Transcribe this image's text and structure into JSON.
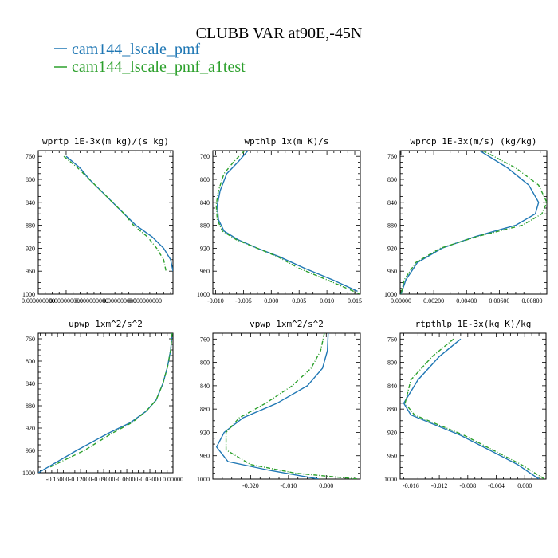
{
  "figure": {
    "title": "CLUBB VAR at90E,-45N",
    "legend": [
      {
        "label": "cam144_lscale_pmf",
        "color": "#1f77b4",
        "dash": "solid"
      },
      {
        "label": "cam144_lscale_pmf_a1test",
        "color": "#2ca02c",
        "dash": "dashdot"
      }
    ]
  },
  "chart_data": [
    {
      "type": "line",
      "title": "wprtp  1E-3x(m kg)/(s kg)",
      "xlim": [
        0.0,
        5.8e-06
      ],
      "ylim": [
        1000,
        750
      ],
      "xticks": [
        {
          "v": 0.0,
          "label": "0.000000000"
        },
        {
          "v": 1.2e-06,
          "label": "0.000000000"
        },
        {
          "v": 2.3e-06,
          "label": "0.000000000"
        },
        {
          "v": 3.5e-06,
          "label": "0.000000000"
        },
        {
          "v": 4.6e-06,
          "label": "0.000000000"
        }
      ],
      "yticks": [
        760,
        800,
        840,
        880,
        920,
        960,
        1000
      ],
      "series": [
        {
          "name": "cam144_lscale_pmf",
          "x": [
            1.2e-06,
            1.8e-06,
            2.2e-06,
            2.7e-06,
            3.2e-06,
            3.7e-06,
            4.2e-06,
            4.9e-06,
            5.4e-06,
            5.7e-06,
            5.8e-06
          ],
          "y": [
            760,
            780,
            800,
            820,
            840,
            860,
            880,
            900,
            920,
            940,
            960
          ]
        },
        {
          "name": "cam144_lscale_pmf_a1test",
          "x": [
            1.1e-06,
            1.7e-06,
            2.2e-06,
            2.7e-06,
            3.2e-06,
            3.7e-06,
            4.1e-06,
            4.7e-06,
            5.1e-06,
            5.4e-06,
            5.5e-06
          ],
          "y": [
            760,
            780,
            800,
            820,
            840,
            860,
            880,
            900,
            920,
            940,
            960
          ]
        }
      ]
    },
    {
      "type": "line",
      "title": "wpthlp  1x(m K)/s",
      "xlim": [
        -0.0105,
        0.016
      ],
      "ylim": [
        1000,
        750
      ],
      "xticks": [
        {
          "v": -0.01,
          "label": "-0.010"
        },
        {
          "v": -0.005,
          "label": "-0.005"
        },
        {
          "v": 0.0,
          "label": "0.000"
        },
        {
          "v": 0.005,
          "label": "0.005"
        },
        {
          "v": 0.01,
          "label": "0.010"
        },
        {
          "v": 0.015,
          "label": "0.015"
        }
      ],
      "yticks": [
        760,
        800,
        840,
        880,
        920,
        960,
        1000
      ],
      "series": [
        {
          "name": "cam144_lscale_pmf",
          "x": [
            -0.0042,
            -0.006,
            -0.008,
            -0.0092,
            -0.0097,
            -0.0095,
            -0.0085,
            -0.006,
            -0.0025,
            0.0015,
            0.006,
            0.011,
            0.0155
          ],
          "y": [
            750,
            770,
            790,
            820,
            845,
            870,
            890,
            905,
            920,
            935,
            955,
            975,
            995
          ]
        },
        {
          "name": "cam144_lscale_pmf_a1test",
          "x": [
            -0.0048,
            -0.0068,
            -0.0085,
            -0.0095,
            -0.0099,
            -0.0097,
            -0.0088,
            -0.0063,
            -0.0025,
            0.0012,
            0.005,
            0.01,
            0.016
          ],
          "y": [
            750,
            770,
            790,
            820,
            845,
            870,
            890,
            905,
            920,
            935,
            955,
            975,
            1000
          ]
        }
      ]
    },
    {
      "type": "line",
      "title": "wprcp  1E-3x(m/s) (kg/kg)",
      "xlim": [
        -5e-05,
        0.0089
      ],
      "ylim": [
        1000,
        750
      ],
      "xticks": [
        {
          "v": 0.0,
          "label": "0.00000"
        },
        {
          "v": 0.002,
          "label": "0.00200"
        },
        {
          "v": 0.004,
          "label": "0.00400"
        },
        {
          "v": 0.006,
          "label": "0.00600"
        },
        {
          "v": 0.008,
          "label": "0.00800"
        }
      ],
      "yticks": [
        760,
        800,
        840,
        880,
        920,
        960,
        1000
      ],
      "series": [
        {
          "name": "cam144_lscale_pmf",
          "x": [
            0.0048,
            0.0065,
            0.0078,
            0.0084,
            0.0082,
            0.007,
            0.0045,
            0.0025,
            0.001,
            0.0003,
            0.0
          ],
          "y": [
            750,
            780,
            810,
            840,
            860,
            880,
            900,
            920,
            945,
            975,
            1000
          ]
        },
        {
          "name": "cam144_lscale_pmf_a1test",
          "x": [
            0.005,
            0.007,
            0.0084,
            0.0089,
            0.0086,
            0.0074,
            0.0046,
            0.0024,
            0.0009,
            0.0002,
            0.0
          ],
          "y": [
            750,
            780,
            810,
            840,
            860,
            880,
            900,
            920,
            945,
            975,
            1000
          ]
        }
      ]
    },
    {
      "type": "line",
      "title": "upwp  1xm^2/s^2",
      "xlim": [
        -0.175,
        0.0
      ],
      "ylim": [
        1000,
        750
      ],
      "xticks": [
        {
          "v": -0.15,
          "label": "-0.15000"
        },
        {
          "v": -0.12,
          "label": "-0.12000"
        },
        {
          "v": -0.09,
          "label": "-0.09000"
        },
        {
          "v": -0.06,
          "label": "-0.06000"
        },
        {
          "v": -0.03,
          "label": "-0.03000"
        },
        {
          "v": 0.0,
          "label": "0.00000"
        }
      ],
      "yticks": [
        760,
        800,
        840,
        880,
        920,
        960,
        1000
      ],
      "series": [
        {
          "name": "cam144_lscale_pmf",
          "x": [
            -0.001,
            -0.003,
            -0.007,
            -0.013,
            -0.022,
            -0.035,
            -0.055,
            -0.085,
            -0.125,
            -0.175
          ],
          "y": [
            750,
            780,
            810,
            840,
            870,
            890,
            910,
            930,
            960,
            1000
          ]
        },
        {
          "name": "cam144_lscale_pmf_a1test",
          "x": [
            -0.001,
            -0.003,
            -0.007,
            -0.013,
            -0.022,
            -0.035,
            -0.053,
            -0.08,
            -0.115,
            -0.16
          ],
          "y": [
            750,
            780,
            810,
            840,
            870,
            890,
            910,
            930,
            960,
            990
          ]
        }
      ]
    },
    {
      "type": "line",
      "title": "vpwp  1xm^2/s^2",
      "xlim": [
        -0.03,
        0.009
      ],
      "ylim": [
        1000,
        750
      ],
      "xticks": [
        {
          "v": -0.02,
          "label": "-0.020"
        },
        {
          "v": -0.01,
          "label": "-0.010"
        },
        {
          "v": 0.0,
          "label": "0.000"
        }
      ],
      "yticks": [
        760,
        800,
        840,
        880,
        920,
        960,
        1000
      ],
      "series": [
        {
          "name": "cam144_lscale_pmf",
          "x": [
            0.0005,
            0.0003,
            -0.001,
            -0.005,
            -0.013,
            -0.022,
            -0.027,
            -0.029,
            -0.026,
            -0.015,
            -0.002
          ],
          "y": [
            750,
            780,
            810,
            840,
            870,
            895,
            920,
            945,
            970,
            985,
            1000
          ]
        },
        {
          "name": "cam144_lscale_pmf_a1test",
          "x": [
            -0.0005,
            -0.0015,
            -0.004,
            -0.009,
            -0.016,
            -0.023,
            -0.0265,
            -0.0265,
            -0.02,
            -0.008,
            0.0085
          ],
          "y": [
            750,
            780,
            810,
            840,
            870,
            895,
            920,
            950,
            975,
            990,
            1000
          ]
        }
      ]
    },
    {
      "type": "line",
      "title": "rtpthlp  1E-3x(kg K)/kg",
      "xlim": [
        -0.0175,
        0.003
      ],
      "ylim": [
        1000,
        750
      ],
      "xticks": [
        {
          "v": -0.016,
          "label": "-0.016"
        },
        {
          "v": -0.012,
          "label": "-0.012"
        },
        {
          "v": -0.008,
          "label": "-0.008"
        },
        {
          "v": -0.004,
          "label": "-0.004"
        },
        {
          "v": 0.0,
          "label": "0.000"
        }
      ],
      "yticks": [
        760,
        800,
        840,
        880,
        920,
        960,
        1000
      ],
      "series": [
        {
          "name": "cam144_lscale_pmf",
          "x": [
            -0.009,
            -0.012,
            -0.015,
            -0.017,
            -0.016,
            -0.013,
            -0.009,
            -0.005,
            -0.001,
            0.002
          ],
          "y": [
            760,
            790,
            830,
            870,
            890,
            905,
            925,
            950,
            975,
            1000
          ]
        },
        {
          "name": "cam144_lscale_pmf_a1test",
          "x": [
            -0.01,
            -0.013,
            -0.016,
            -0.0168,
            -0.0155,
            -0.0125,
            -0.0085,
            -0.0045,
            -0.0005,
            0.0028
          ],
          "y": [
            760,
            790,
            830,
            870,
            890,
            905,
            925,
            950,
            975,
            1000
          ]
        }
      ]
    }
  ]
}
